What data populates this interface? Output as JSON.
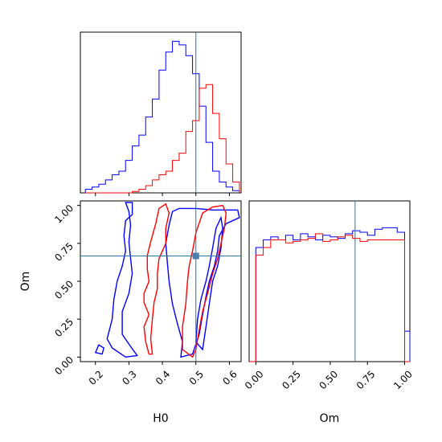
{
  "chart_data": [
    {
      "type": "histogram",
      "panel": "H0 marginal",
      "xlabel": "",
      "ylabel": "",
      "xlim": [
        0.155,
        0.635
      ],
      "truth": 0.5,
      "bin_width": 0.02,
      "bins_start": [
        0.17,
        0.19,
        0.21,
        0.23,
        0.25,
        0.27,
        0.29,
        0.31,
        0.33,
        0.35,
        0.37,
        0.39,
        0.41,
        0.43,
        0.45,
        0.47,
        0.49,
        0.51,
        0.53,
        0.55,
        0.57,
        0.59,
        0.61
      ],
      "series": [
        {
          "name": "",
          "color": "#0000ff",
          "counts": [
            0.5,
            0.8,
            1.2,
            1.8,
            2.5,
            3.0,
            4.5,
            6.5,
            8.0,
            10.5,
            13.0,
            17.0,
            19.5,
            21.0,
            20.5,
            19.0,
            16.5,
            12.0,
            7.0,
            3.0,
            1.5,
            0.8,
            0.3
          ]
        },
        {
          "name": "",
          "color": "#ff0000",
          "counts": [
            0,
            0,
            0,
            0,
            0,
            0,
            0,
            0.2,
            0.5,
            1.0,
            1.8,
            2.5,
            3.0,
            4.5,
            5.5,
            8.5,
            10.0,
            14.5,
            15.0,
            11.0,
            7.5,
            4.0,
            1.5
          ]
        }
      ]
    },
    {
      "type": "contour",
      "panel": "H0 vs Om",
      "xlabel": "H0",
      "ylabel": "Om",
      "xlim": [
        0.155,
        0.635
      ],
      "ylim": [
        -0.03,
        1.03
      ],
      "xticks": [
        "0.2",
        "0.3",
        "0.4",
        "0.5",
        "0.6"
      ],
      "yticks": [
        "0.00",
        "0.25",
        "0.50",
        "0.75",
        "1.00"
      ],
      "truth": {
        "H0": 0.5,
        "Om": 0.667
      },
      "series": [
        {
          "name": "",
          "color": "#0000ff",
          "contours": [
            [
              [
                0.29,
                1.02
              ],
              [
                0.31,
                1.02
              ],
              [
                0.31,
                0.94
              ],
              [
                0.29,
                0.9
              ],
              [
                0.285,
                0.8
              ],
              [
                0.29,
                0.7
              ],
              [
                0.28,
                0.6
              ],
              [
                0.265,
                0.5
              ],
              [
                0.255,
                0.38
              ],
              [
                0.25,
                0.25
              ],
              [
                0.235,
                0.12
              ],
              [
                0.25,
                0.06
              ],
              [
                0.29,
                0.0
              ],
              [
                0.325,
                0.01
              ],
              [
                0.305,
                0.07
              ],
              [
                0.28,
                0.15
              ],
              [
                0.28,
                0.3
              ],
              [
                0.3,
                0.42
              ],
              [
                0.31,
                0.55
              ],
              [
                0.305,
                0.65
              ],
              [
                0.3,
                0.76
              ],
              [
                0.305,
                0.87
              ],
              [
                0.3,
                0.96
              ]
            ],
            [
              [
                0.2,
                0.03
              ],
              [
                0.22,
                0.02
              ],
              [
                0.225,
                0.06
              ],
              [
                0.21,
                0.08
              ]
            ],
            [
              [
                0.43,
                0.96
              ],
              [
                0.45,
                0.98
              ],
              [
                0.5,
                0.98
              ],
              [
                0.55,
                0.97
              ],
              [
                0.59,
                0.97
              ],
              [
                0.625,
                0.97
              ],
              [
                0.63,
                0.92
              ],
              [
                0.59,
                0.88
              ],
              [
                0.57,
                0.8
              ],
              [
                0.565,
                0.7
              ],
              [
                0.555,
                0.6
              ],
              [
                0.54,
                0.5
              ],
              [
                0.53,
                0.4
              ],
              [
                0.52,
                0.28
              ],
              [
                0.51,
                0.15
              ],
              [
                0.49,
                0.02
              ],
              [
                0.455,
                0.0
              ],
              [
                0.46,
                0.1
              ],
              [
                0.445,
                0.22
              ],
              [
                0.43,
                0.35
              ],
              [
                0.42,
                0.5
              ],
              [
                0.415,
                0.62
              ],
              [
                0.41,
                0.75
              ],
              [
                0.42,
                0.87
              ]
            ],
            [
              [
                0.5,
                0.1
              ],
              [
                0.52,
                0.05
              ],
              [
                0.53,
                0.2
              ],
              [
                0.54,
                0.35
              ],
              [
                0.55,
                0.5
              ],
              [
                0.565,
                0.6
              ],
              [
                0.575,
                0.72
              ],
              [
                0.58,
                0.85
              ],
              [
                0.575,
                0.92
              ],
              [
                0.56,
                0.85
              ],
              [
                0.55,
                0.72
              ],
              [
                0.54,
                0.6
              ],
              [
                0.53,
                0.5
              ],
              [
                0.515,
                0.38
              ],
              [
                0.505,
                0.25
              ]
            ]
          ]
        },
        {
          "name": "",
          "color": "#ff0000",
          "contours": [
            [
              [
                0.36,
                0.02
              ],
              [
                0.35,
                0.1
              ],
              [
                0.345,
                0.2
              ],
              [
                0.36,
                0.28
              ],
              [
                0.345,
                0.36
              ],
              [
                0.345,
                0.42
              ],
              [
                0.36,
                0.5
              ],
              [
                0.355,
                0.58
              ],
              [
                0.355,
                0.67
              ],
              [
                0.365,
                0.76
              ],
              [
                0.38,
                0.88
              ],
              [
                0.39,
                0.98
              ],
              [
                0.41,
                1.01
              ],
              [
                0.42,
                0.95
              ],
              [
                0.41,
                0.85
              ],
              [
                0.41,
                0.75
              ],
              [
                0.39,
                0.65
              ],
              [
                0.385,
                0.55
              ],
              [
                0.385,
                0.45
              ],
              [
                0.375,
                0.36
              ],
              [
                0.37,
                0.25
              ],
              [
                0.365,
                0.12
              ],
              [
                0.37,
                0.02
              ]
            ],
            [
              [
                0.46,
                0.05
              ],
              [
                0.46,
                0.2
              ],
              [
                0.47,
                0.35
              ],
              [
                0.475,
                0.5
              ],
              [
                0.48,
                0.6
              ],
              [
                0.49,
                0.7
              ],
              [
                0.5,
                0.82
              ],
              [
                0.52,
                0.95
              ],
              [
                0.55,
                0.99
              ],
              [
                0.58,
                1.0
              ],
              [
                0.59,
                0.95
              ],
              [
                0.585,
                0.85
              ],
              [
                0.575,
                0.75
              ],
              [
                0.565,
                0.65
              ],
              [
                0.55,
                0.55
              ],
              [
                0.535,
                0.42
              ],
              [
                0.52,
                0.3
              ],
              [
                0.51,
                0.18
              ],
              [
                0.5,
                0.05
              ],
              [
                0.49,
                0.0
              ]
            ]
          ]
        }
      ]
    },
    {
      "type": "histogram",
      "panel": "Om marginal",
      "xlabel": "Om",
      "ylabel": "",
      "xlim": [
        -0.045,
        1.035
      ],
      "xticks": [
        "0.00",
        "0.25",
        "0.50",
        "0.75",
        "1.00"
      ],
      "truth": 0.667,
      "bin_width": 0.05,
      "bins_start": [
        0.0,
        0.05,
        0.1,
        0.15,
        0.2,
        0.25,
        0.3,
        0.35,
        0.4,
        0.45,
        0.5,
        0.55,
        0.6,
        0.65,
        0.7,
        0.75,
        0.8,
        0.85,
        0.9,
        0.95,
        1.0
      ],
      "series": [
        {
          "name": "",
          "color": "#0000ff",
          "counts": [
            0.75,
            0.8,
            0.82,
            0.8,
            0.83,
            0.8,
            0.84,
            0.82,
            0.8,
            0.83,
            0.82,
            0.81,
            0.84,
            0.86,
            0.85,
            0.83,
            0.87,
            0.88,
            0.88,
            0.85,
            0.2
          ]
        },
        {
          "name": "",
          "color": "#ff0000",
          "counts": [
            0.7,
            0.75,
            0.8,
            0.8,
            0.78,
            0.79,
            0.8,
            0.81,
            0.84,
            0.79,
            0.8,
            0.82,
            0.83,
            0.81,
            0.79,
            0.8,
            0.8,
            0.8,
            0.8,
            0.8,
            0.0
          ]
        }
      ]
    }
  ],
  "colors": {
    "truth": "#1f77b4",
    "truth_marker": "#4c7fb0",
    "axes": "#000000",
    "background": "#ffffff"
  }
}
